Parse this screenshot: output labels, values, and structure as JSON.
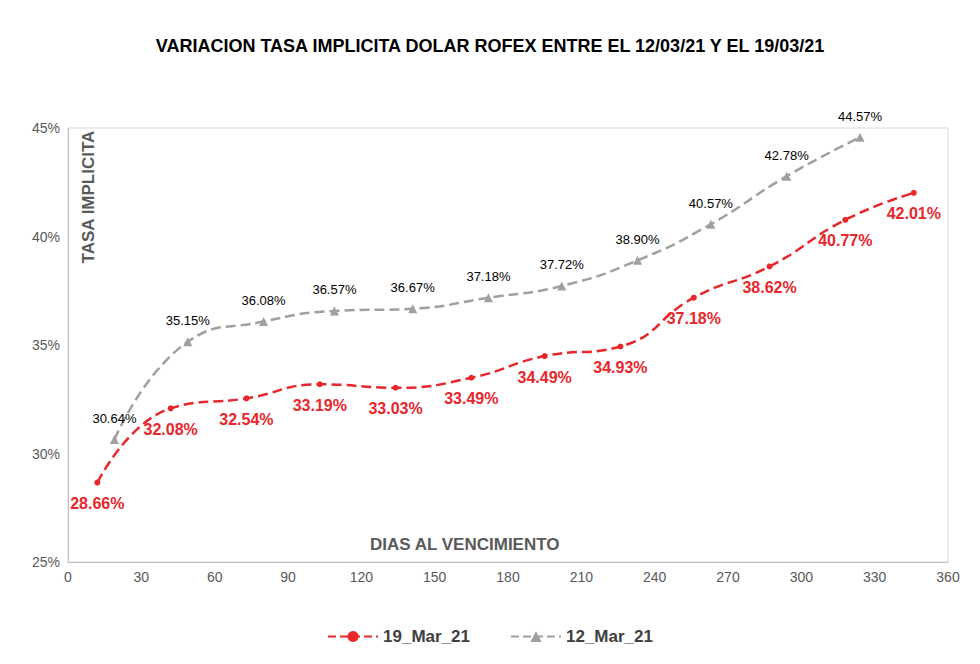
{
  "chart_data": {
    "type": "line",
    "title": "VARIACION TASA IMPLICITA DOLAR ROFEX ENTRE EL 12/03/21 Y EL 19/03/21",
    "x_label": "DIAS AL VENCIMIENTO",
    "y_label": "TASA IMPLICITA",
    "xlim": [
      0,
      360
    ],
    "xticks": [
      0,
      30,
      60,
      90,
      120,
      150,
      180,
      210,
      240,
      270,
      300,
      330,
      360
    ],
    "ylim": [
      25,
      45
    ],
    "yticks": [
      {
        "value": 25,
        "label": "25%"
      },
      {
        "value": 30,
        "label": "30%"
      },
      {
        "value": 35,
        "label": "35%"
      },
      {
        "value": 40,
        "label": "40%"
      },
      {
        "value": 45,
        "label": "45%"
      }
    ],
    "grid": false,
    "legend": "bottom",
    "data_labels": true,
    "series": [
      {
        "name": "19_Mar_21",
        "color": "#e8262b",
        "marker": "circle",
        "line_style": "dashed",
        "x": [
          12,
          42,
          73,
          103,
          134,
          165,
          195,
          226,
          256,
          287,
          318,
          346
        ],
        "values": [
          28.66,
          32.08,
          32.54,
          33.19,
          33.03,
          33.49,
          34.49,
          34.93,
          37.18,
          38.62,
          40.77,
          42.01
        ],
        "value_labels": [
          "28.66%",
          "32.08%",
          "32.54%",
          "33.19%",
          "33.03%",
          "33.49%",
          "34.49%",
          "34.93%",
          "37.18%",
          "38.62%",
          "40.77%",
          "42.01%"
        ]
      },
      {
        "name": "12_Mar_21",
        "color": "#a0a0a0",
        "marker": "triangle",
        "line_style": "dashed",
        "x": [
          19,
          49,
          80,
          109,
          141,
          172,
          202,
          233,
          263,
          294,
          324
        ],
        "values": [
          30.64,
          35.15,
          36.08,
          36.57,
          36.67,
          37.18,
          37.72,
          38.9,
          40.57,
          42.78,
          44.57
        ],
        "value_labels": [
          "30.64%",
          "35.15%",
          "36.08%",
          "36.57%",
          "36.67%",
          "37.18%",
          "37.72%",
          "38.90%",
          "40.57%",
          "42.78%",
          "44.57%"
        ]
      }
    ]
  }
}
